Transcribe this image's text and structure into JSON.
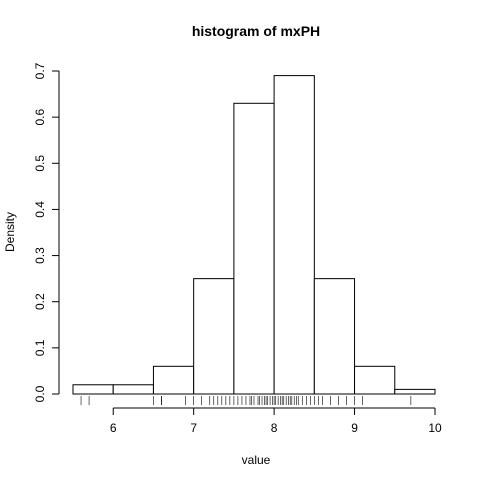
{
  "chart_data": {
    "type": "bar",
    "title": "histogram of mxPH",
    "xlabel": "value",
    "ylabel": "Density",
    "xlim": [
      5.5,
      10.0
    ],
    "ylim": [
      0,
      0.7
    ],
    "x_ticks": [
      6,
      7,
      8,
      9,
      10
    ],
    "y_ticks": [
      0.0,
      0.1,
      0.2,
      0.3,
      0.4,
      0.5,
      0.6,
      0.7
    ],
    "y_tick_labels": [
      "0.0",
      "0.1",
      "0.2",
      "0.3",
      "0.4",
      "0.5",
      "0.6",
      "0.7"
    ],
    "bins": [
      {
        "x0": 5.5,
        "x1": 6.0,
        "density": 0.02
      },
      {
        "x0": 6.0,
        "x1": 6.5,
        "density": 0.02
      },
      {
        "x0": 6.5,
        "x1": 7.0,
        "density": 0.06
      },
      {
        "x0": 7.0,
        "x1": 7.5,
        "density": 0.25
      },
      {
        "x0": 7.5,
        "x1": 8.0,
        "density": 0.63
      },
      {
        "x0": 8.0,
        "x1": 8.5,
        "density": 0.69
      },
      {
        "x0": 8.5,
        "x1": 9.0,
        "density": 0.25
      },
      {
        "x0": 9.0,
        "x1": 9.5,
        "density": 0.06
      },
      {
        "x0": 9.5,
        "x1": 10.0,
        "density": 0.01
      }
    ],
    "rug": [
      5.6,
      5.7,
      6.5,
      6.6,
      6.6,
      6.9,
      7.0,
      7.1,
      7.2,
      7.25,
      7.3,
      7.35,
      7.4,
      7.45,
      7.5,
      7.55,
      7.6,
      7.65,
      7.7,
      7.72,
      7.75,
      7.8,
      7.82,
      7.85,
      7.88,
      7.9,
      7.92,
      7.95,
      7.98,
      8.0,
      8.02,
      8.05,
      8.08,
      8.1,
      8.12,
      8.15,
      8.18,
      8.2,
      8.22,
      8.25,
      8.28,
      8.3,
      8.35,
      8.4,
      8.45,
      8.5,
      8.55,
      8.6,
      8.7,
      8.8,
      8.9,
      9.0,
      9.1,
      9.7
    ],
    "grid": false,
    "legend": "none"
  }
}
